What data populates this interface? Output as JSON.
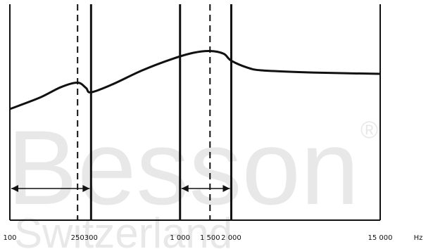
{
  "chart_data": {
    "type": "line",
    "title": "",
    "xlabel": "",
    "ylabel": "",
    "x_scale": "log",
    "x_unit": "Hz",
    "xlim": [
      100,
      15000
    ],
    "x_tick_labels": [
      {
        "value": 100,
        "label": "100"
      },
      {
        "value": 250,
        "label": "250"
      },
      {
        "value": 300,
        "label": "300"
      },
      {
        "value": 1000,
        "label": "1 000"
      },
      {
        "value": 1500,
        "label": "1 500"
      },
      {
        "value": 2000,
        "label": "2 000"
      },
      {
        "value": 15000,
        "label": "15 000"
      }
    ],
    "unit_label": "Hz",
    "solid_markers": [
      300,
      1000,
      2000
    ],
    "dashed_markers": [
      250,
      1500
    ],
    "bands": [
      {
        "from": 100,
        "to": 300
      },
      {
        "from": 1000,
        "to": 2000
      }
    ],
    "series": [
      {
        "x": [
          100,
          150,
          200,
          250,
          280,
          300,
          400,
          600,
          900,
          1200,
          1500,
          1800,
          2000,
          2500,
          3000,
          5000,
          8000,
          15000
        ],
        "y": [
          0.28,
          0.41,
          0.53,
          0.58,
          0.52,
          0.47,
          0.56,
          0.72,
          0.85,
          0.92,
          0.94,
          0.91,
          0.83,
          0.75,
          0.72,
          0.7,
          0.69,
          0.68
        ]
      }
    ],
    "ylim": [
      0,
      1
    ],
    "grid": false
  },
  "watermark": {
    "brand": "Besson",
    "sub": "Switzerland",
    "mark": "®"
  }
}
